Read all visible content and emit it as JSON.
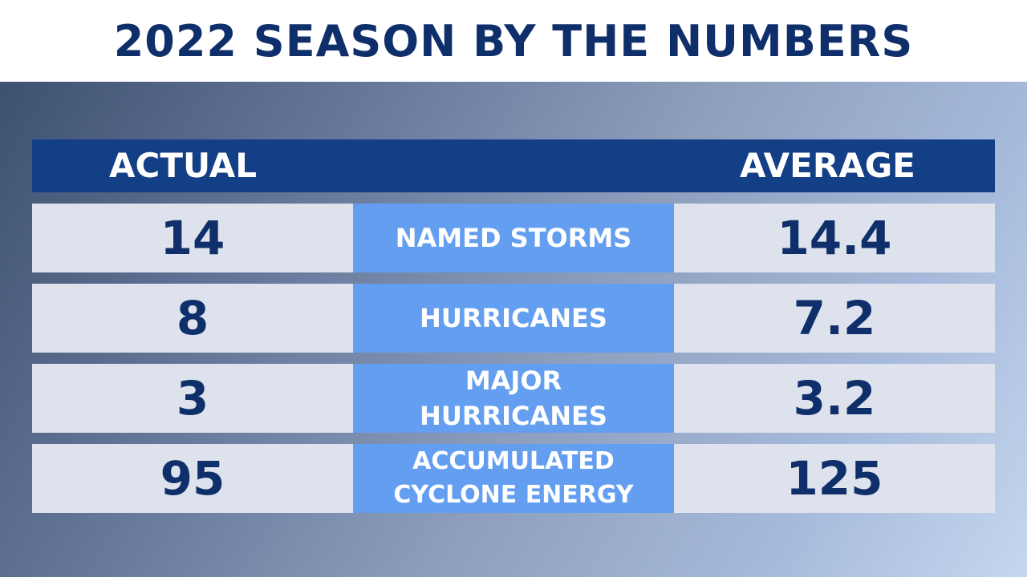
{
  "title": "2022 SEASON BY THE NUMBERS",
  "header": {
    "actual": "ACTUAL",
    "average": "AVERAGE"
  },
  "rows": [
    {
      "actual": "14",
      "metric": "NAMED STORMS",
      "average": "14.4"
    },
    {
      "actual": "8",
      "metric": "HURRICANES",
      "average": "7.2"
    },
    {
      "actual": "3",
      "metric": "MAJOR\nHURRICANES",
      "average": "3.2"
    },
    {
      "actual": "95",
      "metric": "ACCUMULATED\nCYCLONE ENERGY",
      "average": "125"
    }
  ],
  "colors": {
    "title": "#0f2f6b",
    "header_bg": "#123f85",
    "metric_bg": "#639ef0",
    "value_bg": "#dde2ec"
  }
}
